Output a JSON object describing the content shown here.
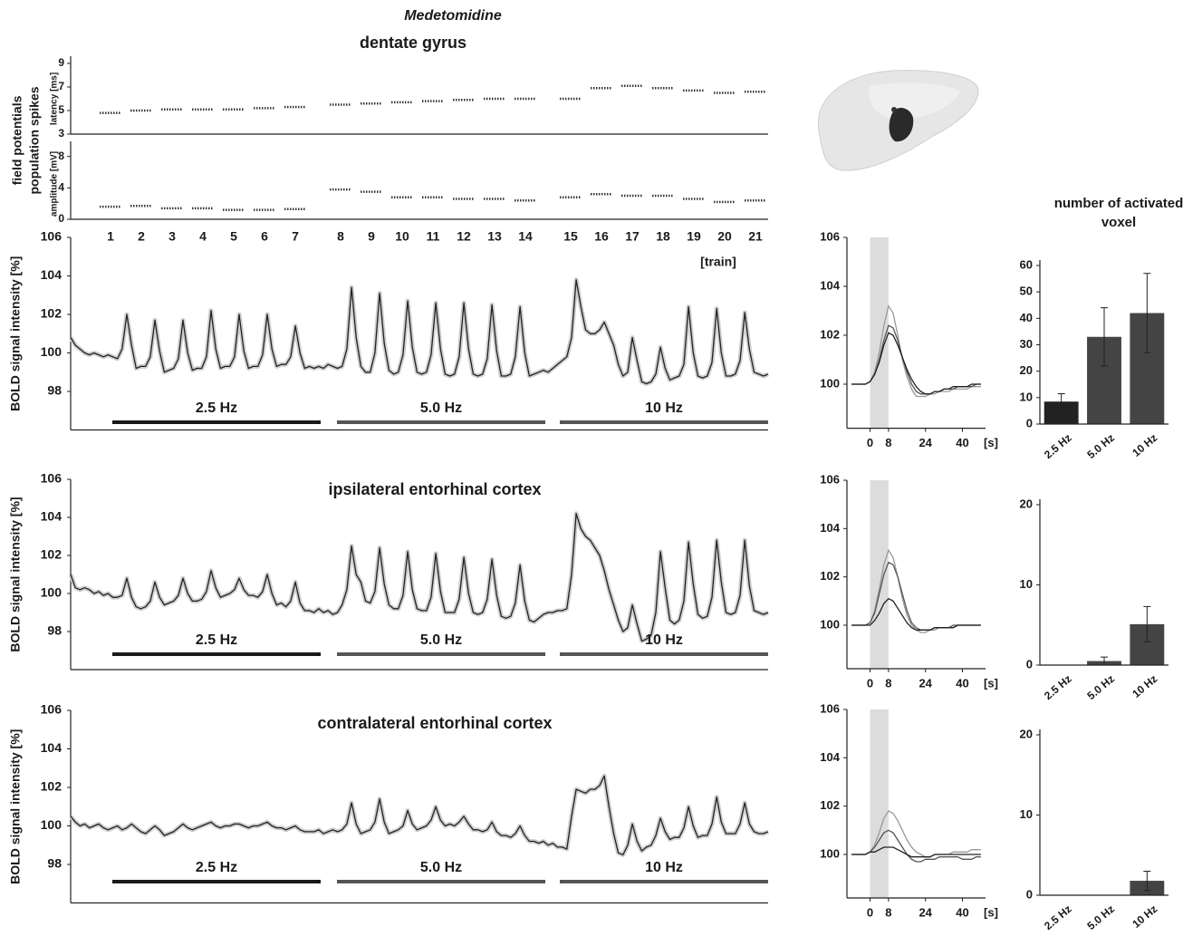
{
  "title": "Medetomidine",
  "subtitle": "dentate gyrus",
  "side_label": [
    "field potentials",
    "population spikes"
  ],
  "chart_data": [
    {
      "type": "strip",
      "ylabel": "latency [ms]",
      "color": "#333",
      "values": [
        4.8,
        5.0,
        5.1,
        5.1,
        5.1,
        5.2,
        5.3,
        5.5,
        5.6,
        5.7,
        5.8,
        5.9,
        6.0,
        6.0,
        6.0,
        6.9,
        7.1,
        6.9,
        6.7,
        6.5,
        6.6
      ],
      "ylim": [
        3,
        9
      ],
      "yticks": [
        3,
        5,
        7,
        9
      ]
    },
    {
      "type": "strip",
      "ylabel": "amplitude [mV]",
      "xlabel": "[train]",
      "color": "#333",
      "categories": [
        "1",
        "2",
        "3",
        "4",
        "5",
        "6",
        "7",
        "8",
        "9",
        "10",
        "11",
        "12",
        "13",
        "14",
        "15",
        "16",
        "17",
        "18",
        "19",
        "20",
        "21"
      ],
      "values": [
        1.6,
        1.7,
        1.4,
        1.4,
        1.2,
        1.2,
        1.3,
        3.8,
        3.5,
        2.8,
        2.8,
        2.6,
        2.6,
        2.4,
        2.8,
        3.2,
        3.0,
        3.0,
        2.6,
        2.2,
        2.4
      ],
      "ylim": [
        0,
        9
      ],
      "yticks": [
        0,
        4,
        8
      ]
    },
    {
      "type": "line",
      "ylabel": "BOLD signal intensity [%]",
      "color": "#222",
      "band_color": "#cfcfcf",
      "ylim": [
        96,
        106
      ],
      "yticks": [
        98,
        100,
        102,
        104,
        106
      ],
      "segments": [
        {
          "label": "2.5 Hz",
          "color": "#1a1a1a"
        },
        {
          "label": "5.0 Hz",
          "color": "#555"
        },
        {
          "label": "10 Hz",
          "color": "#555"
        }
      ],
      "values": [
        100.8,
        100.4,
        100.2,
        100.0,
        99.9,
        100.0,
        99.9,
        99.8,
        99.9,
        99.8,
        99.7,
        100.2,
        102.0,
        100.4,
        99.2,
        99.3,
        99.3,
        99.8,
        101.7,
        100.1,
        99.0,
        99.1,
        99.2,
        99.7,
        101.7,
        100.0,
        99.1,
        99.2,
        99.2,
        99.8,
        102.2,
        100.2,
        99.2,
        99.3,
        99.3,
        99.8,
        102.0,
        100.1,
        99.2,
        99.3,
        99.3,
        99.9,
        102.0,
        100.2,
        99.3,
        99.4,
        99.4,
        99.8,
        101.4,
        100.0,
        99.2,
        99.3,
        99.2,
        99.3,
        99.2,
        99.4,
        99.3,
        99.2,
        99.3,
        100.2,
        103.4,
        100.8,
        99.3,
        99.0,
        99.0,
        100.0,
        103.1,
        100.5,
        99.1,
        98.9,
        99.0,
        99.9,
        102.7,
        100.3,
        99.0,
        98.9,
        99.0,
        99.9,
        102.6,
        100.2,
        98.9,
        98.8,
        98.9,
        99.8,
        102.6,
        100.2,
        98.9,
        98.8,
        98.9,
        99.7,
        102.5,
        100.1,
        98.8,
        98.8,
        98.9,
        99.8,
        102.4,
        100.0,
        98.8,
        98.9,
        99.0,
        99.1,
        99.0,
        99.2,
        99.4,
        99.6,
        99.8,
        100.8,
        103.8,
        102.4,
        101.2,
        101.0,
        101.0,
        101.2,
        101.6,
        101.0,
        100.4,
        99.4,
        98.8,
        99.0,
        100.8,
        99.6,
        98.5,
        98.4,
        98.5,
        98.9,
        100.3,
        99.2,
        98.6,
        98.7,
        98.8,
        99.4,
        102.4,
        100.0,
        98.8,
        98.7,
        98.8,
        99.5,
        102.3,
        100.0,
        98.8,
        98.8,
        98.9,
        99.6,
        102.1,
        100.2,
        99.0,
        98.9,
        98.8,
        98.9
      ]
    },
    {
      "type": "line",
      "title": "ipsilateral entorhinal cortex",
      "ylabel": "BOLD signal intensity [%]",
      "color": "#222",
      "band_color": "#cfcfcf",
      "ylim": [
        96,
        106
      ],
      "yticks": [
        98,
        100,
        102,
        104,
        106
      ],
      "segments": [
        {
          "label": "2.5 Hz",
          "color": "#1a1a1a"
        },
        {
          "label": "5.0 Hz",
          "color": "#555"
        },
        {
          "label": "10 Hz",
          "color": "#555"
        }
      ],
      "values": [
        101.0,
        100.3,
        100.2,
        100.3,
        100.2,
        100.0,
        100.1,
        99.9,
        100.0,
        99.8,
        99.8,
        99.9,
        100.8,
        99.8,
        99.3,
        99.2,
        99.3,
        99.6,
        100.6,
        99.8,
        99.4,
        99.5,
        99.6,
        99.9,
        100.8,
        100.0,
        99.6,
        99.6,
        99.7,
        100.1,
        101.2,
        100.3,
        99.8,
        99.9,
        100.0,
        100.2,
        100.8,
        100.2,
        99.9,
        99.9,
        99.8,
        100.1,
        101.0,
        100.0,
        99.4,
        99.5,
        99.3,
        99.6,
        100.6,
        99.5,
        99.1,
        99.1,
        99.0,
        99.2,
        99.0,
        99.1,
        98.9,
        99.0,
        99.4,
        100.2,
        102.5,
        101.0,
        100.6,
        99.6,
        99.5,
        100.1,
        102.4,
        100.5,
        99.4,
        99.2,
        99.2,
        99.9,
        102.2,
        100.2,
        99.2,
        99.1,
        99.1,
        99.8,
        102.1,
        100.1,
        99.0,
        99.0,
        99.0,
        99.7,
        101.9,
        100.0,
        99.0,
        98.9,
        99.0,
        99.7,
        101.8,
        99.9,
        98.8,
        98.7,
        98.8,
        99.5,
        101.5,
        99.6,
        98.6,
        98.5,
        98.7,
        98.9,
        99.0,
        99.0,
        99.1,
        99.1,
        99.2,
        101.0,
        104.2,
        103.4,
        103.0,
        102.8,
        102.4,
        102.0,
        101.2,
        100.2,
        99.4,
        98.6,
        98.0,
        98.2,
        99.4,
        98.4,
        97.5,
        97.6,
        97.8,
        99.0,
        102.2,
        100.3,
        98.6,
        98.4,
        98.6,
        99.6,
        102.7,
        100.5,
        98.9,
        98.7,
        98.8,
        99.8,
        102.8,
        100.6,
        99.0,
        98.9,
        99.0,
        99.9,
        102.8,
        100.4,
        99.1,
        99.0,
        98.9,
        99.0
      ]
    },
    {
      "type": "line",
      "title": "contralateral entorhinal cortex",
      "ylabel": "BOLD signal intensity [%]",
      "color": "#222",
      "band_color": "#cfcfcf",
      "ylim": [
        96,
        106
      ],
      "yticks": [
        98,
        100,
        102,
        104,
        106
      ],
      "segments": [
        {
          "label": "2.5 Hz",
          "color": "#1a1a1a"
        },
        {
          "label": "5.0 Hz",
          "color": "#555"
        },
        {
          "label": "10 Hz",
          "color": "#555"
        }
      ],
      "values": [
        100.5,
        100.2,
        100.0,
        100.1,
        99.9,
        100.0,
        100.1,
        99.9,
        99.8,
        99.9,
        100.0,
        99.8,
        99.9,
        100.1,
        99.9,
        99.7,
        99.6,
        99.8,
        100.0,
        99.8,
        99.5,
        99.6,
        99.7,
        99.9,
        100.1,
        99.9,
        99.8,
        99.9,
        100.0,
        100.1,
        100.2,
        100.0,
        99.9,
        100.0,
        100.0,
        100.1,
        100.1,
        100.0,
        99.9,
        100.0,
        100.0,
        100.1,
        100.2,
        100.0,
        99.9,
        99.9,
        99.8,
        99.9,
        100.0,
        99.8,
        99.7,
        99.7,
        99.7,
        99.8,
        99.6,
        99.7,
        99.8,
        99.7,
        99.8,
        100.1,
        101.2,
        100.1,
        99.6,
        99.7,
        99.8,
        100.2,
        101.4,
        100.2,
        99.6,
        99.7,
        99.8,
        100.0,
        100.8,
        100.1,
        99.8,
        99.9,
        100.0,
        100.3,
        101.0,
        100.3,
        100.0,
        100.1,
        100.0,
        100.2,
        100.5,
        100.1,
        99.8,
        99.8,
        99.7,
        99.8,
        100.2,
        99.7,
        99.5,
        99.5,
        99.4,
        99.6,
        100.0,
        99.5,
        99.2,
        99.2,
        99.1,
        99.2,
        99.0,
        99.1,
        98.9,
        98.9,
        98.8,
        100.5,
        101.9,
        101.8,
        101.7,
        101.9,
        101.9,
        102.1,
        102.6,
        101.0,
        99.6,
        98.6,
        98.5,
        99.0,
        100.1,
        99.2,
        98.7,
        98.9,
        99.0,
        99.5,
        100.4,
        99.7,
        99.3,
        99.4,
        99.4,
        99.9,
        101.0,
        100.0,
        99.4,
        99.5,
        99.5,
        100.1,
        101.5,
        100.2,
        99.6,
        99.6,
        99.6,
        100.1,
        101.2,
        100.1,
        99.7,
        99.6,
        99.6,
        99.7
      ]
    },
    {
      "type": "multiline",
      "xlabel": "[s]",
      "xlim": [
        -10,
        50
      ],
      "xticks": [
        0,
        8,
        24,
        40
      ],
      "ylim": [
        98.2,
        106
      ],
      "yticks": [
        100,
        102,
        104,
        106
      ],
      "shade": [
        0,
        8
      ],
      "shade_color": "#dcdcdc",
      "x": [
        -8,
        -6,
        -4,
        -2,
        0,
        2,
        4,
        6,
        8,
        10,
        12,
        14,
        16,
        18,
        20,
        22,
        24,
        26,
        28,
        30,
        32,
        34,
        36,
        38,
        40,
        42,
        44,
        46,
        48
      ],
      "series": [
        {
          "color": "#999",
          "values": [
            100,
            100,
            100,
            100,
            100.1,
            100.5,
            101.3,
            102.4,
            103.2,
            102.9,
            102.0,
            101.0,
            100.3,
            99.8,
            99.5,
            99.5,
            99.5,
            99.6,
            99.6,
            99.7,
            99.7,
            99.7,
            99.8,
            99.8,
            99.8,
            99.8,
            99.9,
            99.9,
            99.9
          ]
        },
        {
          "color": "#555",
          "values": [
            100,
            100,
            100,
            100,
            100.1,
            100.4,
            101.0,
            101.8,
            102.4,
            102.3,
            101.8,
            101.1,
            100.5,
            100.0,
            99.7,
            99.6,
            99.6,
            99.6,
            99.7,
            99.7,
            99.8,
            99.8,
            99.8,
            99.9,
            99.9,
            99.9,
            99.9,
            100.0,
            100.0
          ]
        },
        {
          "color": "#222",
          "values": [
            100,
            100,
            100,
            100,
            100.1,
            100.4,
            100.9,
            101.6,
            102.1,
            102.0,
            101.6,
            101.1,
            100.6,
            100.2,
            99.9,
            99.7,
            99.6,
            99.6,
            99.7,
            99.7,
            99.8,
            99.8,
            99.9,
            99.9,
            99.9,
            99.9,
            100.0,
            100.0,
            100.0
          ]
        }
      ]
    },
    {
      "type": "multiline",
      "xlabel": "[s]",
      "xlim": [
        -10,
        50
      ],
      "xticks": [
        0,
        8,
        24,
        40
      ],
      "ylim": [
        98.2,
        106
      ],
      "yticks": [
        100,
        102,
        104,
        106
      ],
      "shade": [
        0,
        8
      ],
      "shade_color": "#dcdcdc",
      "x": [
        -8,
        -6,
        -4,
        -2,
        0,
        2,
        4,
        6,
        8,
        10,
        12,
        14,
        16,
        18,
        20,
        22,
        24,
        26,
        28,
        30,
        32,
        34,
        36,
        38,
        40,
        42,
        44,
        46,
        48
      ],
      "series": [
        {
          "color": "#999",
          "values": [
            100,
            100,
            100,
            100,
            100.1,
            100.6,
            101.5,
            102.5,
            103.1,
            102.8,
            102.0,
            101.1,
            100.4,
            100.0,
            99.8,
            99.7,
            99.7,
            99.8,
            99.8,
            99.9,
            99.9,
            99.9,
            99.9,
            100.0,
            100.0,
            100.0,
            100.0,
            100.0,
            100.0
          ]
        },
        {
          "color": "#555",
          "values": [
            100,
            100,
            100,
            100,
            100.1,
            100.5,
            101.3,
            102.1,
            102.6,
            102.5,
            102.0,
            101.3,
            100.6,
            100.1,
            99.9,
            99.8,
            99.8,
            99.8,
            99.9,
            99.9,
            99.9,
            99.9,
            100.0,
            100.0,
            100.0,
            100.0,
            100.0,
            100.0,
            100.0
          ]
        },
        {
          "color": "#222",
          "values": [
            100,
            100,
            100,
            100,
            100.0,
            100.2,
            100.5,
            100.9,
            101.1,
            101.0,
            100.7,
            100.4,
            100.1,
            99.9,
            99.8,
            99.8,
            99.8,
            99.8,
            99.9,
            99.9,
            99.9,
            99.9,
            99.9,
            100.0,
            100.0,
            100.0,
            100.0,
            100.0,
            100.0
          ]
        }
      ]
    },
    {
      "type": "multiline",
      "xlabel": "[s]",
      "xlim": [
        -10,
        50
      ],
      "xticks": [
        0,
        8,
        24,
        40
      ],
      "ylim": [
        98.2,
        106
      ],
      "yticks": [
        100,
        102,
        104,
        106
      ],
      "shade": [
        0,
        8
      ],
      "shade_color": "#dcdcdc",
      "x": [
        -8,
        -6,
        -4,
        -2,
        0,
        2,
        4,
        6,
        8,
        10,
        12,
        14,
        16,
        18,
        20,
        22,
        24,
        26,
        28,
        30,
        32,
        34,
        36,
        38,
        40,
        42,
        44,
        46,
        48
      ],
      "series": [
        {
          "color": "#999",
          "values": [
            100,
            100,
            100,
            100,
            100.1,
            100.4,
            100.9,
            101.5,
            101.8,
            101.7,
            101.4,
            101.0,
            100.6,
            100.3,
            100.1,
            100.0,
            99.9,
            99.9,
            100.0,
            100.0,
            100.0,
            100.0,
            100.1,
            100.1,
            100.1,
            100.1,
            100.2,
            100.2,
            100.2
          ]
        },
        {
          "color": "#555",
          "values": [
            100,
            100,
            100,
            100,
            100.1,
            100.3,
            100.6,
            100.9,
            101.0,
            100.9,
            100.6,
            100.3,
            100.0,
            99.8,
            99.7,
            99.7,
            99.8,
            99.8,
            99.8,
            99.9,
            99.9,
            99.9,
            99.9,
            99.9,
            99.8,
            99.8,
            99.8,
            99.9,
            99.9
          ]
        },
        {
          "color": "#222",
          "values": [
            100,
            100,
            100,
            100,
            100.1,
            100.1,
            100.2,
            100.3,
            100.3,
            100.3,
            100.2,
            100.1,
            100.0,
            99.9,
            99.9,
            99.9,
            99.9,
            99.9,
            100.0,
            100.0,
            100.0,
            100.0,
            100.0,
            100.0,
            100.0,
            100.0,
            100.0,
            100.0,
            100.0
          ]
        }
      ]
    },
    {
      "type": "bar",
      "title": "number of activated voxel",
      "categories": [
        "2.5 Hz",
        "5.0 Hz",
        "10 Hz"
      ],
      "values": [
        8.5,
        33,
        42
      ],
      "errors": [
        3,
        11,
        15
      ],
      "colors": [
        "#222",
        "#444",
        "#444"
      ],
      "ylim": [
        0,
        60
      ],
      "yticks": [
        0,
        10,
        20,
        30,
        40,
        50,
        60
      ]
    },
    {
      "type": "bar",
      "categories": [
        "2.5 Hz",
        "5.0 Hz",
        "10 Hz"
      ],
      "values": [
        0,
        0.5,
        5.1
      ],
      "errors": [
        0,
        0.5,
        2.2
      ],
      "colors": [
        "#222",
        "#444",
        "#444"
      ],
      "ylim": [
        0,
        20
      ],
      "yticks": [
        0,
        10,
        20
      ]
    },
    {
      "type": "bar",
      "categories": [
        "2.5 Hz",
        "5.0 Hz",
        "10 Hz"
      ],
      "values": [
        0,
        0,
        1.8
      ],
      "errors": [
        0,
        0,
        1.2
      ],
      "colors": [
        "#222",
        "#444",
        "#444"
      ],
      "ylim": [
        0,
        20
      ],
      "yticks": [
        0,
        10,
        20
      ]
    }
  ]
}
